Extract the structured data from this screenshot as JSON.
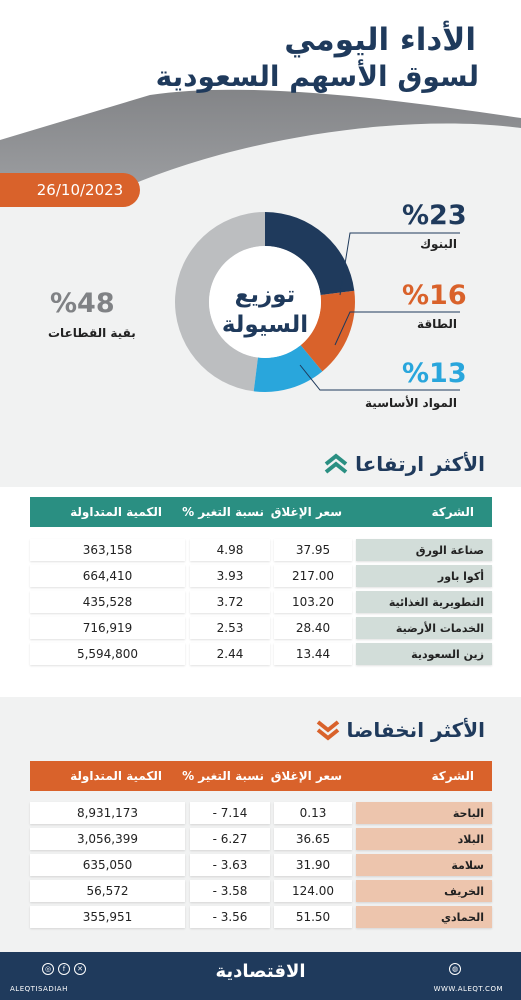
{
  "header": {
    "title_line1": "الأداء اليومي",
    "title_line2": "لسوق الأسهم السعودية",
    "date": "26/10/2023"
  },
  "liquidity": {
    "center_line1": "توزيع",
    "center_line2": "السيولة",
    "segments": [
      {
        "label": "البنوك",
        "pct_text": "%23",
        "value": 23,
        "color": "#1f3a5c"
      },
      {
        "label": "الطاقة",
        "pct_text": "%16",
        "value": 16,
        "color": "#d9622b"
      },
      {
        "label": "المواد الأساسية",
        "pct_text": "%13",
        "value": 13,
        "color": "#29a6dc"
      },
      {
        "label": "بقية القطاعات",
        "pct_text": "%48",
        "value": 48,
        "color": "#bcbec0"
      }
    ]
  },
  "gainers": {
    "title": "الأكثر ارتفاعا",
    "header_color": "#2a8f82",
    "name_color": "#d2ddd9",
    "columns": {
      "name": "الشركة",
      "close": "سعر الإغلاق",
      "change": "نسبة التغير %",
      "qty": "الكمية المتداولة"
    },
    "rows": [
      {
        "name": "صناعة الورق",
        "close": "37.95",
        "change": "4.98",
        "qty": "363,158"
      },
      {
        "name": "أكوا باور",
        "close": "217.00",
        "change": "3.93",
        "qty": "664,410"
      },
      {
        "name": "التطويرية الغذائية",
        "close": "103.20",
        "change": "3.72",
        "qty": "435,528"
      },
      {
        "name": "الخدمات الأرضية",
        "close": "28.40",
        "change": "2.53",
        "qty": "716,919"
      },
      {
        "name": "زين السعودية",
        "close": "13.44",
        "change": "2.44",
        "qty": "5,594,800"
      }
    ]
  },
  "losers": {
    "title": "الأكثر انخفاضا",
    "header_color": "#d9622b",
    "name_color": "#edc5ad",
    "columns": {
      "name": "الشركة",
      "close": "سعر الإغلاق",
      "change": "نسبة التغير %",
      "qty": "الكمية المتداولة"
    },
    "rows": [
      {
        "name": "الباحة",
        "close": "0.13",
        "change": "- 7.14",
        "qty": "8,931,173"
      },
      {
        "name": "البلاد",
        "close": "36.65",
        "change": "- 6.27",
        "qty": "3,056,399"
      },
      {
        "name": "سلامة",
        "close": "31.90",
        "change": "- 3.63",
        "qty": "635,050"
      },
      {
        "name": "الخريف",
        "close": "124.00",
        "change": "- 3.58",
        "qty": "56,572"
      },
      {
        "name": "الحمادي",
        "close": "51.50",
        "change": "- 3.56",
        "qty": "355,951"
      }
    ]
  },
  "footer": {
    "logo": "الاقتصادية",
    "handle": "ALEQTISADIAH",
    "url": "WWW.ALEQT.COM"
  }
}
